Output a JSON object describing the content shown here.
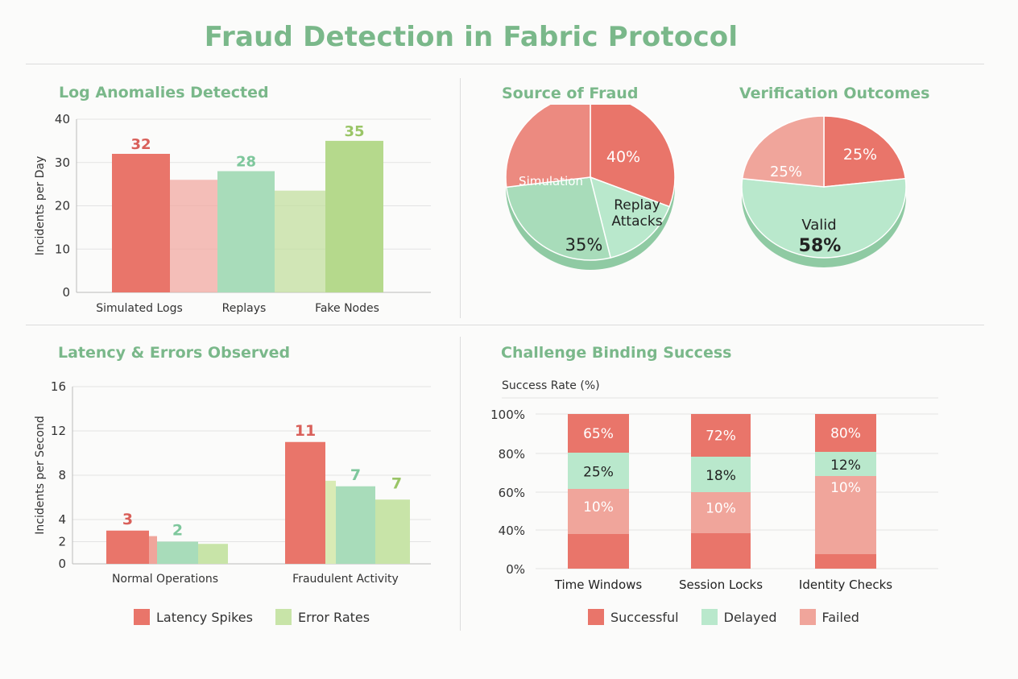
{
  "page": {
    "title": "Fraud Detection in Fabric Protocol"
  },
  "colors": {
    "red": "#e9756a",
    "red_light": "#f0a59b",
    "green": "#a8dcba",
    "green_light": "#c8e4a8",
    "olive": "#b5d98c",
    "title_green": "#7ab88a"
  },
  "chart_data": [
    {
      "id": "log-anomalies",
      "type": "bar",
      "title": "Log Anomalies Detected",
      "ylabel": "Incidents per Day",
      "xlabel": "",
      "ylim": [
        0,
        40
      ],
      "yticks": [
        0,
        10,
        20,
        30,
        40
      ],
      "categories": [
        "Simulated Logs",
        "Replays",
        "Fake Nodes"
      ],
      "values": [
        32,
        28,
        35
      ],
      "bar_colors": [
        "#e9756a",
        "#a8dcba",
        "#b5d98c"
      ],
      "background_bars": [
        26,
        23.5
      ],
      "grid": true
    },
    {
      "id": "source-of-fraud",
      "type": "pie",
      "title": "Source of Fraud",
      "slices": [
        {
          "label": "",
          "value": 40,
          "text": "40%",
          "color": "#e9756a"
        },
        {
          "label": "Replay Attacks",
          "value": 20,
          "text": "",
          "color": "#b9e8cc"
        },
        {
          "label": "",
          "value": 35,
          "text": "35%",
          "color": "#a8dcba"
        },
        {
          "label": "Simulation",
          "value": 35,
          "text": "",
          "color": "#ec8a80"
        }
      ]
    },
    {
      "id": "verification-outcomes",
      "type": "pie",
      "title": "Verification Outcomes",
      "slices": [
        {
          "label": "",
          "value": 25,
          "text": "25%",
          "color": "#e9756a"
        },
        {
          "label": "Valid",
          "value": 58,
          "text": "58%",
          "color": "#b9e8cc"
        },
        {
          "label": "",
          "value": 25,
          "text": "25%",
          "color": "#f0a59b"
        }
      ]
    },
    {
      "id": "latency-errors",
      "type": "bar",
      "title": "Latency & Errors Observed",
      "ylabel": "Incidents per Second",
      "xlabel": "",
      "ylim": [
        0,
        16
      ],
      "yticks": [
        0,
        2,
        4,
        8,
        12,
        16
      ],
      "categories": [
        "Normal Operations",
        "Fraudulent Activity"
      ],
      "series": [
        {
          "name": "Latency Spikes",
          "values": [
            3,
            11
          ],
          "color": "#e9756a"
        },
        {
          "name": "",
          "values": [
            2,
            7
          ],
          "color": "#a8dcba"
        },
        {
          "name": "Error Rates",
          "values": [
            null,
            7
          ],
          "color": "#c8e4a8"
        }
      ],
      "grid": true
    },
    {
      "id": "challenge-binding",
      "type": "bar",
      "stacked": true,
      "title": "Challenge Binding Success",
      "ylabel": "Success Rate (%)",
      "xlabel": "",
      "ylim": [
        0,
        100
      ],
      "yticks": [
        "0%",
        "40%",
        "60%",
        "80%",
        "100%"
      ],
      "categories": [
        "Time Windows",
        "Session Locks",
        "Identity Checks"
      ],
      "series": [
        {
          "name": "Successful",
          "values": [
            65,
            72,
            80
          ],
          "color": "#e9756a"
        },
        {
          "name": "Delayed",
          "values": [
            25,
            18,
            12
          ],
          "color": "#b9e8cc"
        },
        {
          "name": "Failed",
          "values": [
            10,
            10,
            10
          ],
          "color": "#f0a59b"
        }
      ],
      "grid": true
    }
  ],
  "legends": {
    "latency": [
      "Latency Spikes",
      "Error Rates"
    ],
    "challenge": [
      "Successful",
      "Delayed",
      "Failed"
    ]
  }
}
